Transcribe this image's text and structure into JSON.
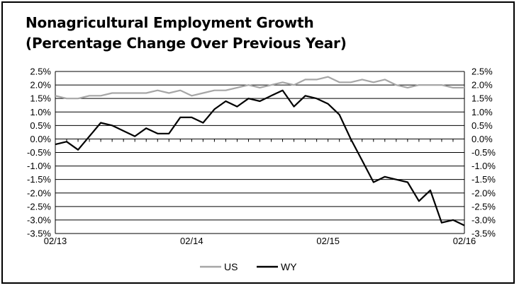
{
  "chart_data": {
    "type": "line",
    "title": "Nonagricultural Employment Growth",
    "subtitle": "(Percentage Change Over Previous Year)",
    "ylim": [
      -3.5,
      2.5
    ],
    "y_ticks": [
      "2.5%",
      "2.0%",
      "1.5%",
      "1.0%",
      "0.5%",
      "0.0%",
      "-0.5%",
      "-1.0%",
      "-1.5%",
      "-2.0%",
      "-2.5%",
      "-3.0%",
      "-3.5%"
    ],
    "x_tick_labels": [
      "02/13",
      "02/14",
      "02/15",
      "02/16"
    ],
    "x_tick_index": [
      0,
      12,
      24,
      36
    ],
    "grid": "horizontal",
    "legend_position": "bottom-center",
    "x": [
      "02/13",
      "03/13",
      "04/13",
      "05/13",
      "06/13",
      "07/13",
      "08/13",
      "09/13",
      "10/13",
      "11/13",
      "12/13",
      "01/14",
      "02/14",
      "03/14",
      "04/14",
      "05/14",
      "06/14",
      "07/14",
      "08/14",
      "09/14",
      "10/14",
      "11/14",
      "12/14",
      "01/15",
      "02/15",
      "03/15",
      "04/15",
      "05/15",
      "06/15",
      "07/15",
      "08/15",
      "09/15",
      "10/15",
      "11/15",
      "12/15",
      "01/16",
      "02/16"
    ],
    "series": [
      {
        "name": "US",
        "color": "#a6a6a6",
        "values": [
          1.6,
          1.5,
          1.5,
          1.6,
          1.6,
          1.7,
          1.7,
          1.7,
          1.7,
          1.8,
          1.7,
          1.8,
          1.6,
          1.7,
          1.8,
          1.8,
          1.9,
          2.0,
          1.9,
          2.0,
          2.1,
          2.0,
          2.2,
          2.2,
          2.3,
          2.1,
          2.1,
          2.2,
          2.1,
          2.2,
          2.0,
          1.9,
          2.0,
          2.0,
          2.0,
          1.9,
          1.9
        ]
      },
      {
        "name": "WY",
        "color": "#000000",
        "values": [
          -0.2,
          -0.1,
          -0.4,
          0.1,
          0.6,
          0.5,
          0.3,
          0.1,
          0.4,
          0.2,
          0.2,
          0.8,
          0.8,
          0.6,
          1.1,
          1.4,
          1.2,
          1.5,
          1.4,
          1.6,
          1.8,
          1.2,
          1.6,
          1.5,
          1.3,
          0.9,
          0.0,
          -0.8,
          -1.6,
          -1.4,
          -1.5,
          -1.6,
          -2.3,
          -1.9,
          -3.1,
          -3.0,
          -3.2
        ]
      }
    ]
  }
}
